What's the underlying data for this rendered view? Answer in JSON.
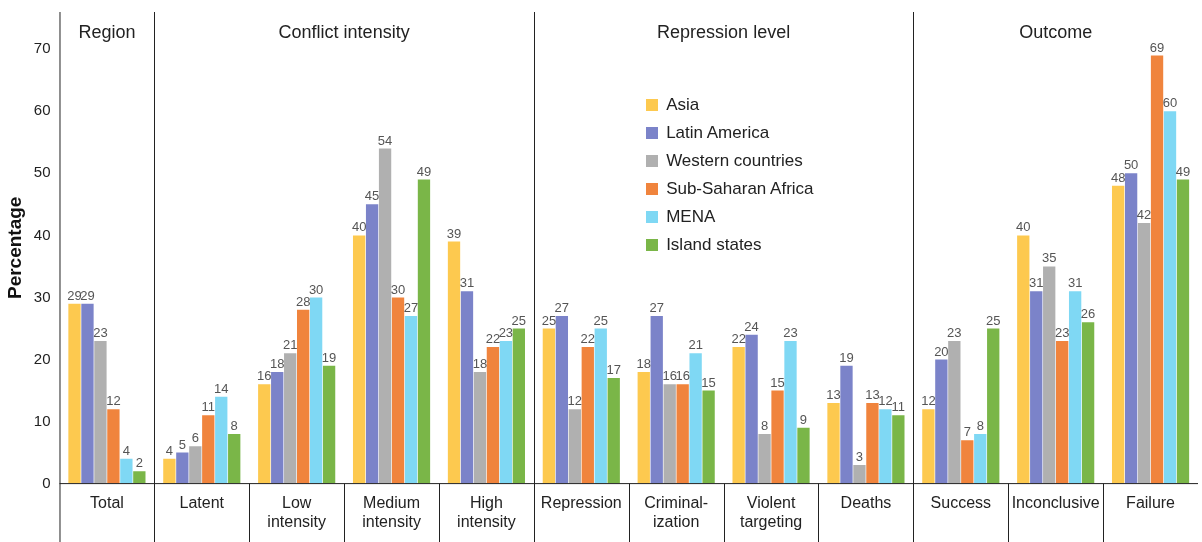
{
  "chart_data": {
    "type": "bar",
    "ylabel": "Percentage",
    "categories": [
      "Total",
      "Latent",
      "Low intensity",
      "Medium intensity",
      "High intensity",
      "Repression",
      "Criminal-ization",
      "Violent targeting",
      "Deaths",
      "Success",
      "Inconclusive",
      "Failure"
    ],
    "series": [
      {
        "name": "Asia",
        "color": "#fdc94f",
        "values": [
          29,
          4,
          16,
          40,
          39,
          25,
          18,
          22,
          13,
          12,
          40,
          48
        ]
      },
      {
        "name": "Latin America",
        "color": "#7b83c9",
        "values": [
          29,
          5,
          18,
          45,
          31,
          27,
          27,
          24,
          19,
          20,
          31,
          50
        ]
      },
      {
        "name": "Western countries",
        "color": "#b0b0b0",
        "values": [
          23,
          6,
          21,
          54,
          18,
          12,
          16,
          8,
          3,
          23,
          35,
          42
        ]
      },
      {
        "name": "Sub-Saharan Africa",
        "color": "#f0843d",
        "values": [
          12,
          11,
          28,
          30,
          22,
          22,
          16,
          15,
          13,
          7,
          23,
          69
        ]
      },
      {
        "name": "MENA",
        "color": "#7fd8f4",
        "values": [
          4,
          14,
          30,
          27,
          23,
          25,
          21,
          23,
          12,
          8,
          31,
          60
        ]
      },
      {
        "name": "Island states",
        "color": "#7ab648",
        "values": [
          2,
          8,
          19,
          49,
          25,
          17,
          15,
          9,
          11,
          25,
          26,
          49
        ]
      }
    ],
    "annotations": [
      "Region",
      "Conflict intensity",
      "Repression level",
      "Outcome"
    ],
    "ylim": [
      0,
      76
    ],
    "yticks": [
      0,
      10,
      20,
      30,
      40,
      50,
      60,
      70
    ],
    "grid": false,
    "legend": "top",
    "data_labels": true
  }
}
